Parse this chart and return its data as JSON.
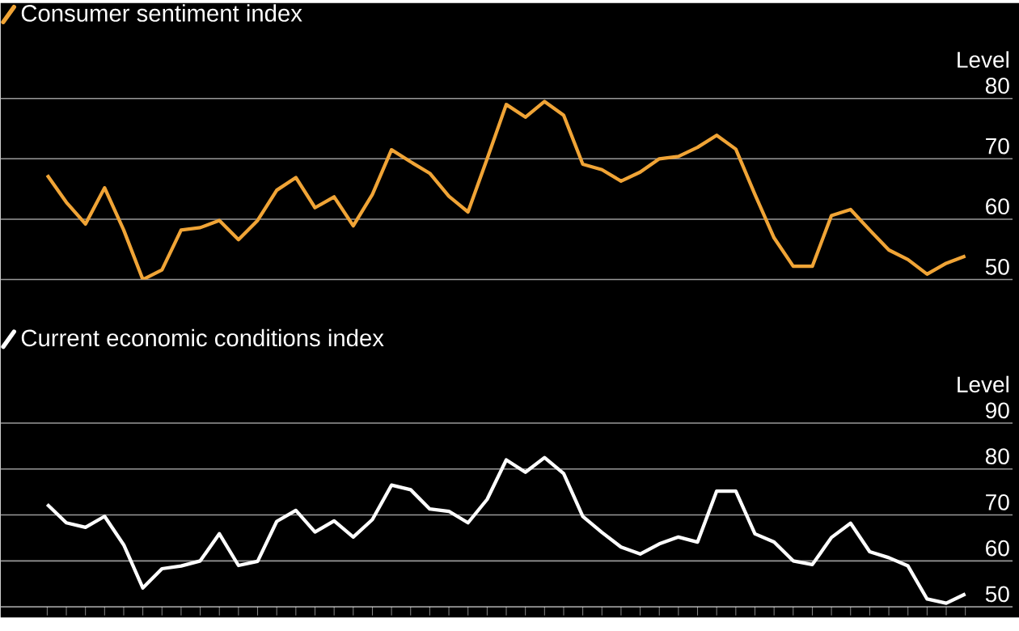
{
  "chart_data": [
    {
      "type": "line",
      "ylabel": "Level",
      "categories": [
        null,
        null,
        null,
        null,
        null,
        null,
        null,
        null,
        null,
        null,
        null,
        null,
        null,
        null,
        null,
        null,
        null,
        null,
        null,
        null,
        null,
        null,
        null,
        null,
        null,
        null,
        null,
        null,
        null,
        null,
        null,
        null,
        null,
        null,
        null,
        null,
        null,
        null,
        null,
        null,
        null,
        null,
        null,
        null,
        null,
        null,
        null,
        null,
        null
      ],
      "series": [
        {
          "name": "Consumer sentiment index",
          "color": "#f0a436",
          "values": [
            67.3,
            62.8,
            59.2,
            65.2,
            58.2,
            50.0,
            51.6,
            58.2,
            58.6,
            59.8,
            56.6,
            59.8,
            64.8,
            66.9,
            61.9,
            63.7,
            58.9,
            64.1,
            71.5,
            69.5,
            67.6,
            63.8,
            61.2,
            70.0,
            79.0,
            76.9,
            79.5,
            77.2,
            69.1,
            68.2,
            66.3,
            67.8,
            70.0,
            70.4,
            71.9,
            73.9,
            71.6,
            64.1,
            56.9,
            52.2,
            52.2,
            60.6,
            61.6,
            58.2,
            54.9,
            53.3,
            50.9,
            52.7,
            53.9
          ]
        }
      ],
      "ylim": [
        50,
        80
      ],
      "yticks": [
        50,
        60,
        70,
        80
      ],
      "grid": "y",
      "legend": "top left",
      "tick_labels": "y",
      "marker": "none",
      "line_style": "solid"
    },
    {
      "type": "line",
      "ylabel": "Level",
      "categories": [
        null,
        null,
        null,
        null,
        null,
        null,
        null,
        null,
        null,
        null,
        null,
        null,
        null,
        null,
        null,
        null,
        null,
        null,
        null,
        null,
        null,
        null,
        null,
        null,
        null,
        null,
        null,
        null,
        null,
        null,
        null,
        null,
        null,
        null,
        null,
        null,
        null,
        null,
        null,
        null,
        null,
        null,
        null,
        null,
        null,
        null,
        null,
        null,
        null
      ],
      "series": [
        {
          "name": "Current economic conditions index",
          "color": "#ffffff",
          "values": [
            72.3,
            68.3,
            67.3,
            69.7,
            63.5,
            54.1,
            58.3,
            58.9,
            60.0,
            65.9,
            59.0,
            59.9,
            68.6,
            71.0,
            66.3,
            68.7,
            65.2,
            69.0,
            76.5,
            75.5,
            71.3,
            70.8,
            68.3,
            73.4,
            82.0,
            79.3,
            82.5,
            79.0,
            69.7,
            66.2,
            63.0,
            61.5,
            63.7,
            65.2,
            64.1,
            75.2,
            75.2,
            65.9,
            64.1,
            60.0,
            59.2,
            65.1,
            68.2,
            62.0,
            60.7,
            58.9,
            51.7,
            50.8,
            52.8
          ]
        }
      ],
      "ylim": [
        50,
        90
      ],
      "yticks": [
        50,
        60,
        70,
        80,
        90
      ],
      "grid": "y",
      "legend": "top left",
      "tick_labels": "y",
      "marker": "none",
      "line_style": "solid"
    }
  ]
}
